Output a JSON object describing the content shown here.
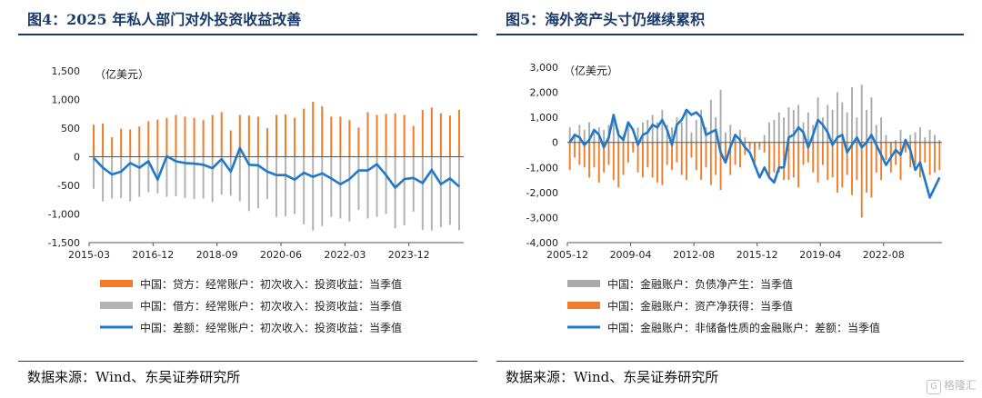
{
  "charts": [
    {
      "fig_title": "图4：2025 年私人部门对外投资收益改善",
      "source": "数据来源：Wind、东吴证券研究所",
      "chart_data": {
        "type": "bar",
        "unit": "（亿美元）",
        "ylim": [
          -1500,
          1500
        ],
        "yticks": [
          1500,
          1000,
          500,
          0,
          -500,
          -1000,
          -1500
        ],
        "ytick_labels": [
          "1,500",
          "1,000",
          "500",
          "0",
          "-500",
          "-1,000",
          "-1,500"
        ],
        "x_tick_labels": [
          "2015-03",
          "2016-12",
          "2018-09",
          "2020-06",
          "2022-03",
          "2023-12"
        ],
        "x_tick_index": [
          0,
          7,
          14,
          21,
          28,
          35
        ],
        "x": [
          "2015-03",
          "2015-06",
          "2015-09",
          "2015-12",
          "2016-03",
          "2016-06",
          "2016-09",
          "2016-12",
          "2017-03",
          "2017-06",
          "2017-09",
          "2017-12",
          "2018-03",
          "2018-06",
          "2018-09",
          "2018-12",
          "2019-03",
          "2019-06",
          "2019-09",
          "2019-12",
          "2020-03",
          "2020-06",
          "2020-09",
          "2020-12",
          "2021-03",
          "2021-06",
          "2021-09",
          "2021-12",
          "2022-03",
          "2022-06",
          "2022-09",
          "2022-12",
          "2023-03",
          "2023-06",
          "2023-09",
          "2023-12",
          "2024-03",
          "2024-06",
          "2024-09",
          "2024-12",
          "2025-03"
        ],
        "series": [
          {
            "name": "中国：贷方：经常账户：初次收入：投资收益：当季值",
            "kind": "bar",
            "color": "#f07c2a",
            "values": [
              560,
              580,
              340,
              490,
              480,
              530,
              620,
              650,
              680,
              730,
              700,
              680,
              640,
              730,
              780,
              460,
              730,
              720,
              700,
              500,
              730,
              740,
              680,
              840,
              960,
              880,
              700,
              700,
              640,
              510,
              780,
              730,
              750,
              760,
              730,
              540,
              820,
              860,
              760,
              720,
              820
            ]
          },
          {
            "name": "中国：借方：经常账户：初次收入：投资收益：当季值",
            "kind": "bar",
            "color": "#b3b3b3",
            "values": [
              -560,
              -780,
              -730,
              -720,
              -780,
              -700,
              -620,
              -640,
              -700,
              -690,
              -720,
              -740,
              -730,
              -790,
              -660,
              -680,
              -780,
              -950,
              -900,
              -740,
              -1050,
              -1040,
              -1000,
              -1180,
              -1290,
              -1210,
              -1050,
              -1080,
              -1130,
              -930,
              -1080,
              -1050,
              -1000,
              -1250,
              -1200,
              -960,
              -1280,
              -1290,
              -1230,
              -1190,
              -1280
            ]
          },
          {
            "name": "中国：差额：经常账户：初次收入：投资收益：当季值",
            "kind": "line",
            "color": "#1f78c8",
            "values": [
              -20,
              -190,
              -310,
              -260,
              -110,
              -190,
              -80,
              -400,
              10,
              -80,
              -110,
              -120,
              -140,
              -200,
              -40,
              -260,
              150,
              -140,
              -150,
              -260,
              -320,
              -320,
              -400,
              -280,
              -350,
              -290,
              -380,
              -480,
              -390,
              -240,
              -240,
              -130,
              -320,
              -540,
              -390,
              -370,
              -460,
              -230,
              -480,
              -380,
              -520
            ]
          }
        ]
      }
    },
    {
      "fig_title": "图5：海外资产头寸仍继续累积",
      "source": "数据来源：Wind、东吴证券研究所",
      "chart_data": {
        "type": "bar",
        "unit": "（亿美元）",
        "ylim": [
          -4000,
          3000
        ],
        "yticks": [
          3000,
          2000,
          1000,
          0,
          -1000,
          -2000,
          -3000,
          -4000
        ],
        "ytick_labels": [
          "3,000",
          "2,000",
          "1,000",
          "0",
          "-1,000",
          "-2,000",
          "-3,000",
          "-4,000"
        ],
        "x_tick_labels": [
          "2005-12",
          "2009-04",
          "2012-08",
          "2015-12",
          "2019-04",
          "2022-08"
        ],
        "x_tick_index": [
          0,
          13,
          26,
          39,
          52,
          65
        ],
        "x_range": [
          "2005-12",
          "2025-03"
        ],
        "series": [
          {
            "name": "中国：金融账户：负债净产生：当季值",
            "kind": "bar",
            "color": "#a9a9a9",
            "values": [
              600,
              350,
              700,
              500,
              800,
              400,
              600,
              500,
              700,
              1000,
              500,
              300,
              700,
              -200,
              600,
              800,
              900,
              1100,
              800,
              1300,
              700,
              600,
              1000,
              800,
              1200,
              400,
              900,
              1300,
              600,
              1700,
              1000,
              2100,
              400,
              700,
              300,
              500,
              200,
              -300,
              -500,
              -300,
              300,
              800,
              900,
              1200,
              1000,
              1400,
              1300,
              1500,
              800,
              1200,
              700,
              1800,
              1000,
              1500,
              1300,
              2000,
              1600,
              1200,
              2200,
              1000,
              2300,
              1300,
              1800,
              700,
              1000,
              300,
              -500,
              100,
              500,
              -200,
              300,
              400,
              600,
              200,
              500,
              300,
              100
            ]
          },
          {
            "name": "中国：金融账户：资产净获得：当季值",
            "kind": "bar",
            "color": "#f07c2a",
            "values": [
              -1100,
              -600,
              -900,
              -1000,
              -1400,
              -1000,
              -1600,
              -1200,
              -900,
              -1500,
              -1800,
              -1300,
              -800,
              -400,
              -1200,
              -1400,
              -1000,
              -1400,
              -1600,
              -1700,
              -900,
              -1100,
              -800,
              -1300,
              -1500,
              -600,
              -1100,
              -1500,
              -1000,
              -1700,
              -1300,
              -1900,
              -800,
              -1300,
              -900,
              -1000,
              -500,
              -200,
              -800,
              -200,
              -400,
              -1400,
              -1200,
              -1200,
              -1500,
              -1500,
              -1400,
              -1800,
              -900,
              -800,
              -1200,
              -1600,
              -900,
              -1500,
              -1400,
              -2000,
              -1800,
              -1300,
              -2100,
              -1500,
              -3000,
              -2000,
              -2200,
              -1200,
              -1500,
              -700,
              -1200,
              -900,
              -1500,
              -400,
              -1000,
              -900,
              -1400,
              -800,
              -1300,
              -1200,
              -1100
            ]
          },
          {
            "name": "中国：金融账户：非储备性质的金融账户：差额：当季值",
            "kind": "line",
            "color": "#1f78c8",
            "values": [
              0,
              300,
              200,
              -100,
              100,
              500,
              300,
              -200,
              200,
              1100,
              300,
              100,
              800,
              500,
              -100,
              300,
              400,
              700,
              600,
              900,
              500,
              -100,
              700,
              900,
              1300,
              1100,
              1200,
              1000,
              300,
              400,
              500,
              -400,
              -800,
              -200,
              300,
              100,
              -200,
              -400,
              -900,
              -1400,
              -1000,
              -1400,
              -1600,
              -1000,
              -1000,
              200,
              300,
              600,
              400,
              -200,
              300,
              900,
              700,
              400,
              -100,
              200,
              300,
              -400,
              -100,
              200,
              -200,
              0,
              300,
              -100,
              -500,
              -900,
              -600,
              -300,
              -500,
              100,
              -300,
              -1100,
              -800,
              -1500,
              -2200,
              -1800,
              -1400
            ]
          }
        ]
      }
    }
  ],
  "watermark": "格隆汇",
  "watermark_icon": "G"
}
